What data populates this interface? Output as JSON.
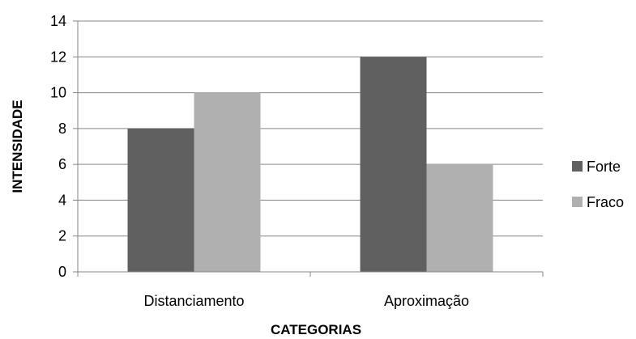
{
  "chart_data": {
    "type": "bar",
    "categories": [
      "Distanciamento",
      "Aproximação"
    ],
    "series": [
      {
        "name": "Forte",
        "values": [
          8,
          12
        ],
        "color": "#606060"
      },
      {
        "name": "Fraco",
        "values": [
          10,
          6
        ],
        "color": "#b0b0b0"
      }
    ],
    "xlabel": "CATEGORIAS",
    "ylabel": "INTENSIDADE",
    "ylim": [
      0,
      14
    ],
    "yticks": [
      0,
      2,
      4,
      6,
      8,
      10,
      12,
      14
    ],
    "grid": true,
    "legend_position": "right"
  }
}
